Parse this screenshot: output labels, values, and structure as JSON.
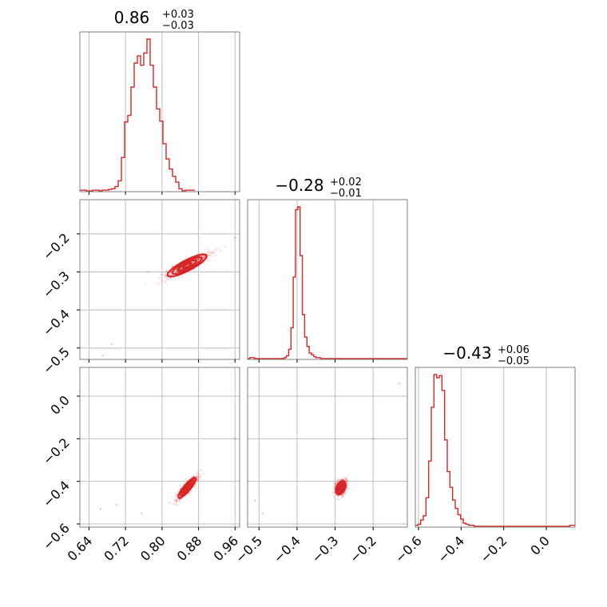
{
  "colors": {
    "accent": "#d62728",
    "grid": "#bfbfbf",
    "frame": "#808080"
  },
  "chart_data": {
    "type": "corner",
    "grid": true,
    "parameters": [
      {
        "title": "0.86",
        "title_plus": "+0.03",
        "title_minus": "−0.03",
        "range": [
          0.62,
          0.97
        ],
        "ticks": [
          0.64,
          0.72,
          0.8,
          0.88,
          0.96
        ],
        "tick_labels": [
          "0.64",
          "0.72",
          "0.80",
          "0.88",
          "0.96"
        ],
        "histogram": {
          "edges_start": 0.62,
          "bin_width": 0.007,
          "counts": [
            1,
            1,
            0,
            0,
            1,
            1,
            0,
            1,
            1,
            2,
            3,
            6,
            14,
            46,
            95,
            104,
            143,
            176,
            186,
            173,
            190,
            209,
            173,
            143,
            113,
            96,
            65,
            44,
            30,
            20,
            12,
            3,
            0,
            1,
            1,
            1
          ]
        }
      },
      {
        "title": "−0.28",
        "title_plus": "+0.02",
        "title_minus": "−0.01",
        "range": [
          -0.53,
          -0.11
        ],
        "ticks": [
          -0.5,
          -0.4,
          -0.3,
          -0.2
        ],
        "tick_labels": [
          "−0.5",
          "−0.4",
          "−0.3",
          "−0.2"
        ],
        "histogram": {
          "edges_start": -0.53,
          "bin_width": 0.006,
          "counts": [
            0,
            1,
            1,
            0,
            0,
            0,
            0,
            0,
            0,
            0,
            0,
            0,
            0,
            0,
            0,
            0,
            1,
            3,
            10,
            33,
            87,
            159,
            162,
            110,
            47,
            23,
            13,
            6,
            4,
            2,
            1,
            1,
            0,
            0,
            0,
            0,
            0,
            0,
            0,
            0,
            0,
            0,
            0,
            0,
            0,
            0,
            0,
            0,
            0,
            0,
            0,
            0,
            0,
            0,
            0,
            0,
            0,
            0,
            0,
            0,
            0,
            0,
            0,
            0,
            0,
            0,
            0,
            0,
            0,
            0
          ]
        }
      },
      {
        "title": "−0.43",
        "title_plus": "+0.06",
        "title_minus": "−0.05",
        "range": [
          -0.615,
          0.135
        ],
        "ticks": [
          -0.6,
          -0.4,
          -0.2,
          0.0
        ],
        "tick_labels": [
          "−0.6",
          "−0.4",
          "−0.2",
          "0.0"
        ],
        "histogram": {
          "edges_start": -0.615,
          "bin_width": 0.0125,
          "counts": [
            1,
            2,
            6,
            10,
            27,
            62,
            113,
            144,
            141,
            143,
            129,
            82,
            52,
            37,
            25,
            17,
            11,
            7,
            3,
            2,
            1,
            1,
            0,
            0,
            0,
            0,
            0,
            0,
            0,
            0,
            0,
            0,
            0,
            0,
            0,
            0,
            0,
            0,
            0,
            0,
            0,
            0,
            0,
            0,
            0,
            0,
            0,
            0,
            0,
            0,
            0,
            0,
            0,
            0,
            0,
            0,
            0,
            0,
            1,
            1
          ]
        }
      }
    ],
    "joint": [
      {
        "x_param": 0,
        "y_param": 1,
        "center": [
          0.855,
          -0.283
        ],
        "slope": 0.6,
        "spread_along": 0.03,
        "spread_across": 0.008,
        "outliers": [
          [
            0.69,
            -0.49
          ],
          [
            0.67,
            -0.52
          ],
          [
            0.77,
            -0.3
          ],
          [
            0.96,
            -0.21
          ]
        ],
        "contours": [
          {
            "center": [
              0.855,
              -0.283
            ],
            "ra": 0.011,
            "rb": 0.004
          },
          {
            "center": [
              0.855,
              -0.283
            ],
            "ra": 0.024,
            "rb": 0.008
          },
          {
            "center": [
              0.855,
              -0.283
            ],
            "ra": 0.038,
            "rb": 0.012
          },
          {
            "center": [
              0.855,
              -0.283
            ],
            "ra": 0.05,
            "rb": 0.016
          }
        ]
      },
      {
        "x_param": 0,
        "y_param": 2,
        "center": [
          0.855,
          -0.43
        ],
        "slope": 2.6,
        "spread_along": 0.03,
        "spread_across": 0.012,
        "outliers": [
          [
            0.665,
            -0.53
          ],
          [
            0.7,
            -0.51
          ],
          [
            0.755,
            -0.55
          ],
          [
            0.96,
            -0.2
          ]
        ],
        "contours": [
          {
            "center": [
              0.855,
              -0.43
            ],
            "ra": 0.011,
            "rb": 0.005
          },
          {
            "center": [
              0.855,
              -0.43
            ],
            "ra": 0.024,
            "rb": 0.01
          },
          {
            "center": [
              0.855,
              -0.43
            ],
            "ra": 0.038,
            "rb": 0.015
          },
          {
            "center": [
              0.855,
              -0.43
            ],
            "ra": 0.05,
            "rb": 0.02
          }
        ]
      },
      {
        "x_param": 1,
        "y_param": 2,
        "center": [
          -0.285,
          -0.43
        ],
        "slope": 4.0,
        "spread_along": 0.018,
        "spread_across": 0.018,
        "outliers": [
          [
            -0.51,
            -0.49
          ],
          [
            -0.49,
            -0.55
          ],
          [
            -0.13,
            0.06
          ],
          [
            -0.2,
            -0.2
          ]
        ],
        "contours": [
          {
            "center": [
              -0.285,
              -0.43
            ],
            "ra": 0.007,
            "rb": 0.007
          },
          {
            "center": [
              -0.285,
              -0.43
            ],
            "ra": 0.015,
            "rb": 0.014
          },
          {
            "center": [
              -0.285,
              -0.43
            ],
            "ra": 0.024,
            "rb": 0.022
          },
          {
            "center": [
              -0.285,
              -0.43
            ],
            "ra": 0.032,
            "rb": 0.03
          }
        ]
      }
    ]
  }
}
